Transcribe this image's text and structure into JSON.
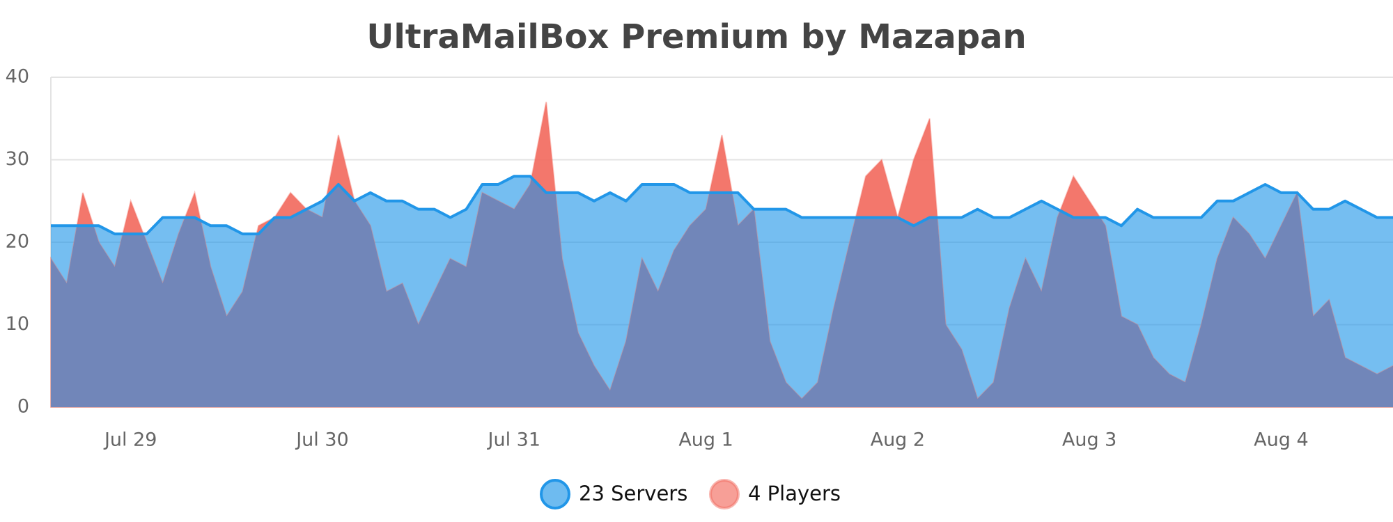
{
  "chart_data": {
    "type": "area",
    "title": "UltraMailBox Premium by Mazapan",
    "categories": [
      null,
      null,
      null,
      null,
      null,
      "Jul 29",
      null,
      null,
      null,
      null,
      null,
      null,
      null,
      null,
      null,
      null,
      null,
      "Jul 30",
      null,
      null,
      null,
      null,
      null,
      null,
      null,
      null,
      null,
      null,
      null,
      "Jul 31",
      null,
      null,
      null,
      null,
      null,
      null,
      null,
      null,
      null,
      null,
      null,
      "Aug 1",
      null,
      null,
      null,
      null,
      null,
      null,
      null,
      null,
      null,
      null,
      null,
      "Aug 2",
      null,
      null,
      null,
      null,
      null,
      null,
      null,
      null,
      null,
      null,
      null,
      "Aug 3",
      null,
      null,
      null,
      null,
      null,
      null,
      null,
      null,
      null,
      null,
      null,
      "Aug 4",
      null,
      null,
      null,
      null,
      null,
      null,
      null
    ],
    "series": [
      {
        "name": "23 Servers",
        "color": "#2196e8",
        "values": [
          22,
          22,
          22,
          22,
          21,
          21,
          21,
          23,
          23,
          23,
          22,
          22,
          21,
          21,
          23,
          23,
          24,
          25,
          27,
          25,
          26,
          25,
          25,
          24,
          24,
          23,
          24,
          27,
          27,
          28,
          28,
          26,
          26,
          26,
          25,
          26,
          25,
          27,
          27,
          27,
          26,
          26,
          26,
          26,
          24,
          24,
          24,
          23,
          23,
          23,
          23,
          23,
          23,
          23,
          22,
          23,
          23,
          23,
          24,
          23,
          23,
          24,
          25,
          24,
          23,
          23,
          23,
          22,
          24,
          23,
          23,
          23,
          23,
          25,
          25,
          26,
          27,
          26,
          26,
          24,
          24,
          25,
          24,
          23,
          23
        ]
      },
      {
        "name": "4 Players",
        "color": "#f26b60",
        "values": [
          18,
          15,
          26,
          20,
          17,
          25,
          20,
          15,
          21,
          26,
          17,
          11,
          14,
          22,
          23,
          26,
          24,
          23,
          33,
          25,
          22,
          14,
          15,
          10,
          14,
          18,
          17,
          26,
          25,
          24,
          27,
          37,
          18,
          9,
          5,
          2,
          8,
          18,
          14,
          19,
          22,
          24,
          33,
          22,
          24,
          8,
          3,
          1,
          3,
          12,
          20,
          28,
          30,
          23,
          30,
          35,
          10,
          7,
          1,
          3,
          12,
          18,
          14,
          23,
          28,
          25,
          22,
          11,
          10,
          6,
          4,
          3,
          10,
          18,
          23,
          21,
          18,
          22,
          26,
          11,
          13,
          6,
          5,
          4,
          5
        ]
      }
    ],
    "ylim": [
      0,
      40
    ],
    "yticks": [
      0,
      10,
      20,
      30,
      40
    ],
    "grid": true
  }
}
